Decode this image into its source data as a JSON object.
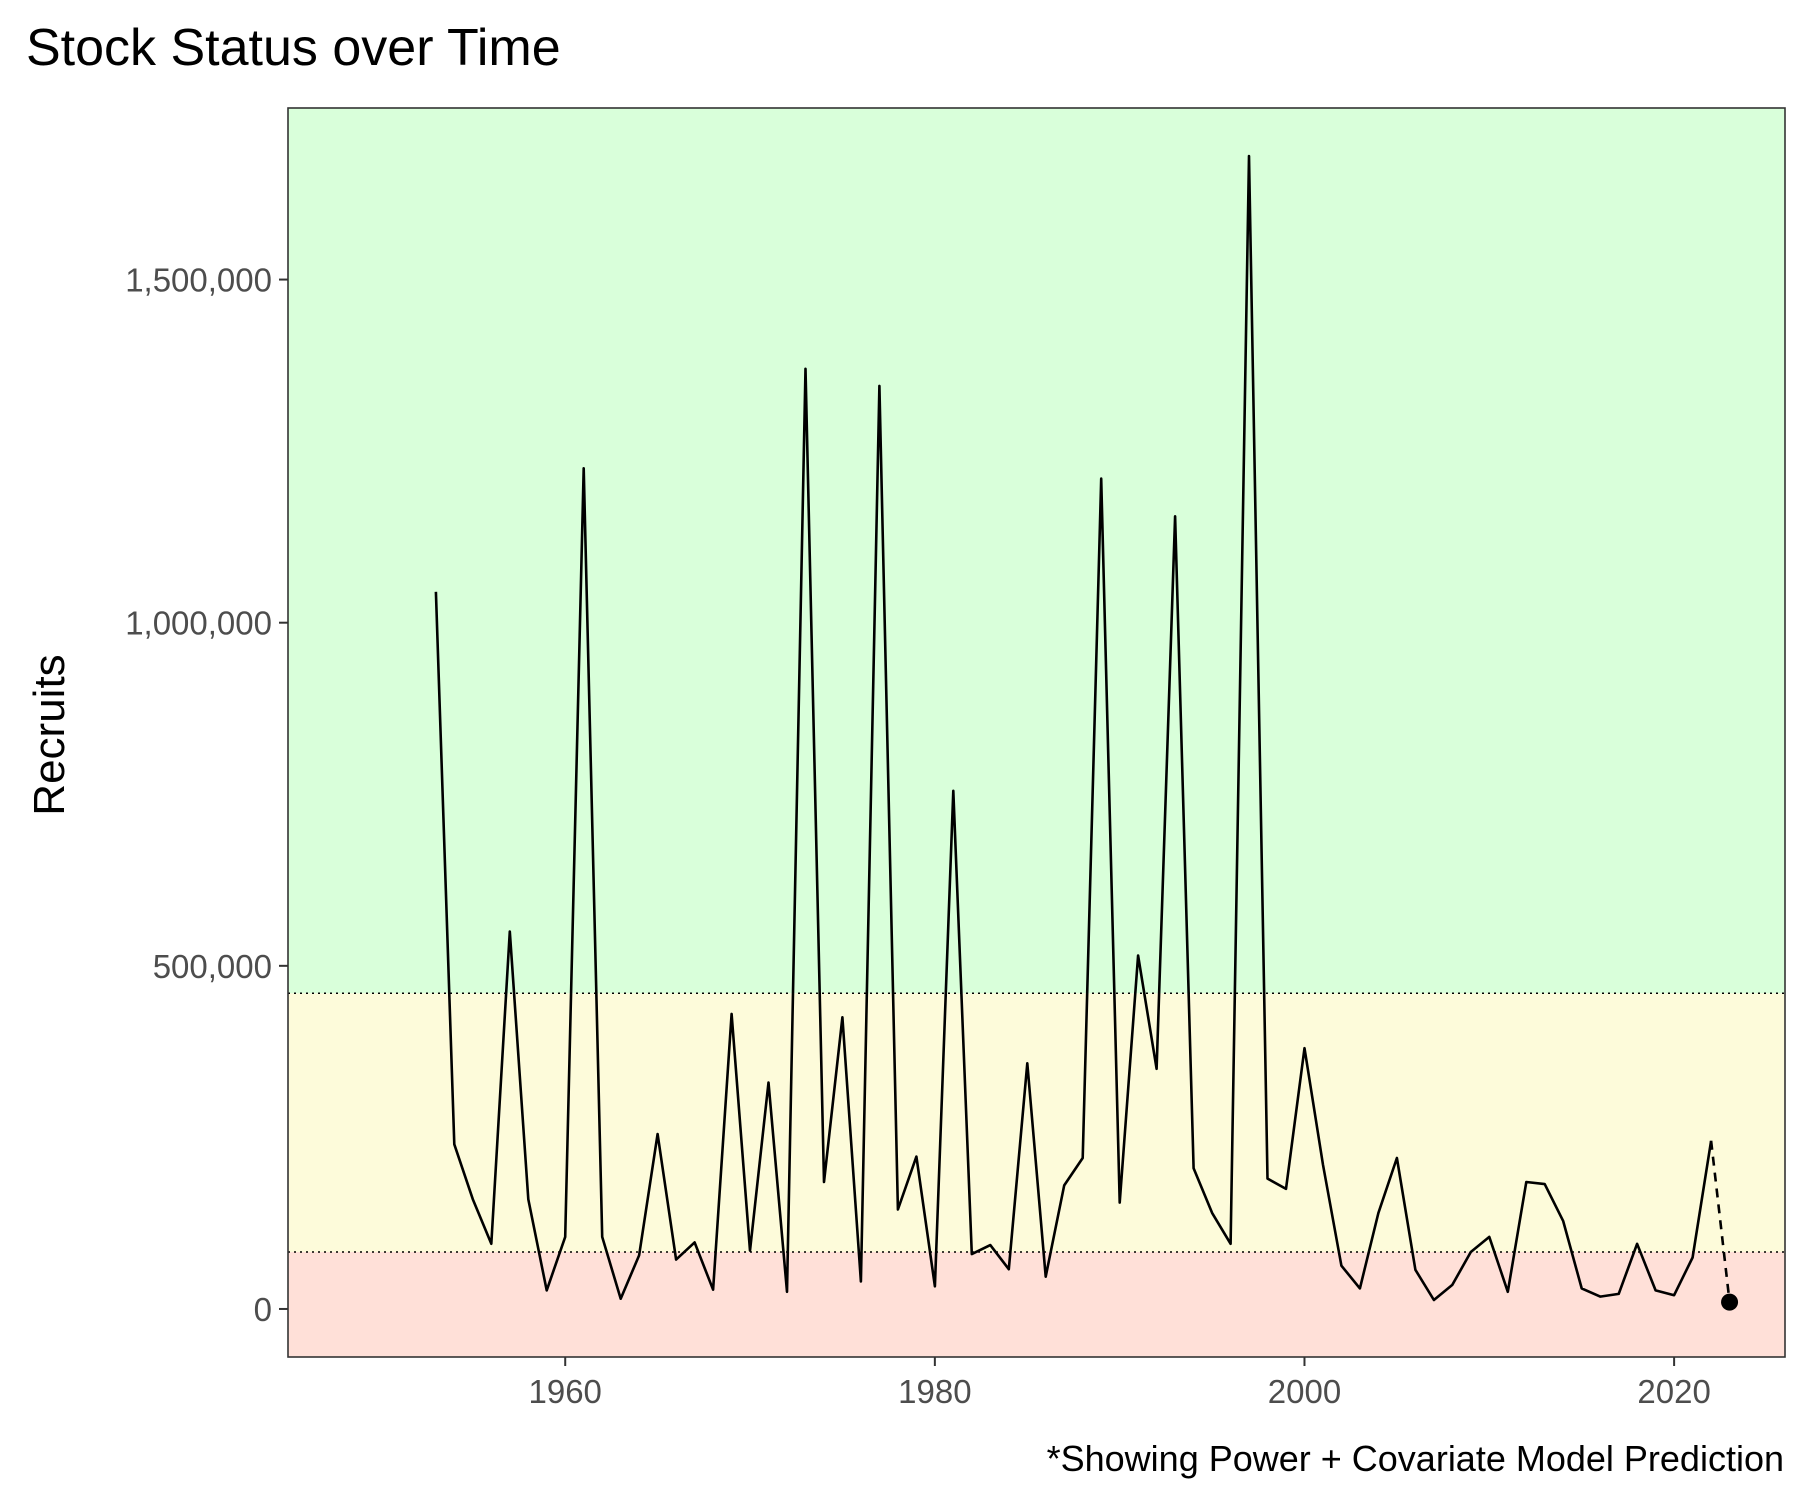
{
  "title": "Stock Status over Time",
  "caption": "*Showing Power + Covariate Model Prediction",
  "chart_data": {
    "type": "line",
    "title": "Stock Status over Time",
    "xlabel": "",
    "ylabel": "Recruits",
    "xlim": [
      1945,
      2026
    ],
    "ylim": [
      -70000,
      1750000
    ],
    "x_ticks": [
      1960,
      1980,
      2000,
      2020
    ],
    "y_ticks": [
      0,
      500000,
      1000000,
      1500000
    ],
    "y_tick_labels": [
      "0",
      "500,000",
      "1,000,000",
      "1,500,000"
    ],
    "zones": [
      {
        "name": "red",
        "from": -70000,
        "to": 83000,
        "color": "#FFE0D8"
      },
      {
        "name": "yellow",
        "from": 83000,
        "to": 460000,
        "color": "#FDFBDA"
      },
      {
        "name": "green",
        "from": 460000,
        "to": 1750000,
        "color": "#D9FFDA"
      }
    ],
    "thresholds": [
      83000,
      460000
    ],
    "grid": false,
    "legend": "none",
    "series": [
      {
        "line_style": "solid",
        "color": "#000000",
        "x": [
          1953,
          1954,
          1955,
          1956,
          1957,
          1958,
          1959,
          1960,
          1961,
          1962,
          1963,
          1964,
          1965,
          1966,
          1967,
          1968,
          1969,
          1970,
          1971,
          1972,
          1973,
          1974,
          1975,
          1976,
          1977,
          1978,
          1979,
          1980,
          1981,
          1982,
          1983,
          1984,
          1985,
          1986,
          1987,
          1988,
          1989,
          1990,
          1991,
          1992,
          1993,
          1994,
          1995,
          1996,
          1997,
          1998,
          1999,
          2000,
          2001,
          2002,
          2003,
          2004,
          2005,
          2006,
          2007,
          2008,
          2009,
          2010,
          2011,
          2012,
          2013,
          2014,
          2015,
          2016,
          2017,
          2018,
          2019,
          2020,
          2021,
          2022
        ],
        "y": [
          1045000,
          240000,
          160000,
          95000,
          550000,
          160000,
          27000,
          105000,
          1225000,
          105000,
          15000,
          78000,
          255000,
          72000,
          97000,
          28000,
          430000,
          85000,
          330000,
          25000,
          1370000,
          185000,
          425000,
          40000,
          1345000,
          145000,
          222000,
          33000,
          755000,
          80000,
          93000,
          58000,
          358000,
          47000,
          180000,
          220000,
          1210000,
          155000,
          515000,
          350000,
          1155000,
          205000,
          140000,
          95000,
          1680000,
          190000,
          175000,
          380000,
          210000,
          63000,
          30000,
          140000,
          220000,
          57000,
          13000,
          35000,
          83000,
          105000,
          25000,
          185000,
          182000,
          128000,
          30000,
          18000,
          22000,
          95000,
          27000,
          20000,
          75000,
          245000
        ]
      },
      {
        "line_style": "dashed",
        "color": "#000000",
        "x": [
          2022,
          2023
        ],
        "y": [
          245000,
          10000
        ]
      }
    ],
    "prediction_point": {
      "x": 2023,
      "y": 10000
    }
  }
}
